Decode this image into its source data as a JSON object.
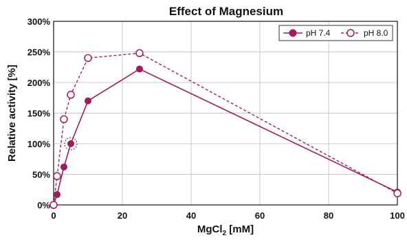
{
  "chart_data": {
    "type": "line",
    "title": "Effect of Magnesium",
    "xlabel_main": "MgCl",
    "xlabel_sub": "2",
    "xlabel_unit": " [mM]",
    "ylabel": "Relative activity [%]",
    "xlim": [
      0,
      100
    ],
    "ylim": [
      0,
      300
    ],
    "x_ticks": [
      0,
      20,
      40,
      60,
      80,
      100
    ],
    "x_tick_labels": [
      "0",
      "20",
      "40",
      "60",
      "80",
      "100"
    ],
    "y_ticks": [
      0,
      50,
      100,
      150,
      200,
      250,
      300
    ],
    "y_tick_labels": [
      "0%",
      "50%",
      "100%",
      "150%",
      "200%",
      "250%",
      "300%"
    ],
    "grid": true,
    "legend_position": "top-right",
    "series": [
      {
        "name": "pH 7.4",
        "color": "#a3195b",
        "marker": "filled-circle",
        "line_style": "solid",
        "x": [
          0,
          1,
          3,
          5,
          10,
          25,
          100
        ],
        "y": [
          0,
          17,
          62,
          100,
          170,
          222,
          21
        ]
      },
      {
        "name": "pH 8.0",
        "color": "#a3195b",
        "marker": "open-circle",
        "line_style": "dashed",
        "x": [
          0,
          1,
          3,
          5,
          10,
          25,
          100
        ],
        "y": [
          0,
          47,
          140,
          180,
          240,
          248,
          19
        ]
      }
    ],
    "annotations": [
      {
        "type": "dotted-circle",
        "x": 5,
        "y": 100
      }
    ]
  }
}
